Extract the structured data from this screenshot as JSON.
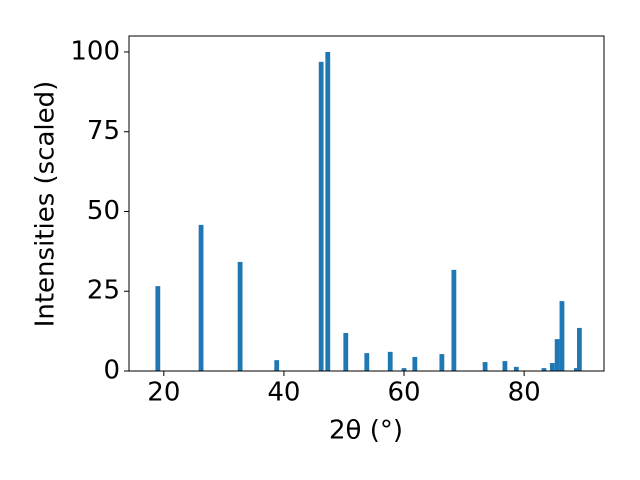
{
  "chart_data": {
    "type": "bar",
    "x_label": "2θ (°)",
    "y_label": "Intensities (scaled)",
    "color": "#1f77b4",
    "x": [
      19.0,
      26.2,
      32.7,
      38.8,
      46.2,
      47.3,
      50.3,
      53.8,
      57.7,
      60.0,
      61.8,
      66.3,
      68.3,
      73.5,
      76.8,
      78.7,
      83.3,
      84.7,
      85.5,
      86.3,
      88.7,
      89.2
    ],
    "values": [
      26.6,
      45.8,
      34.2,
      3.4,
      96.9,
      100,
      11.9,
      5.6,
      6.0,
      0.9,
      4.4,
      5.3,
      31.7,
      2.8,
      3.1,
      1.3,
      0.9,
      2.5,
      10.0,
      21.9,
      0.9,
      13.5
    ],
    "xlim": [
      14.2,
      93.3
    ],
    "ylim": [
      0,
      105
    ],
    "xticks": [
      20,
      40,
      60,
      80
    ],
    "yticks": [
      0,
      25,
      50,
      75,
      100
    ]
  }
}
